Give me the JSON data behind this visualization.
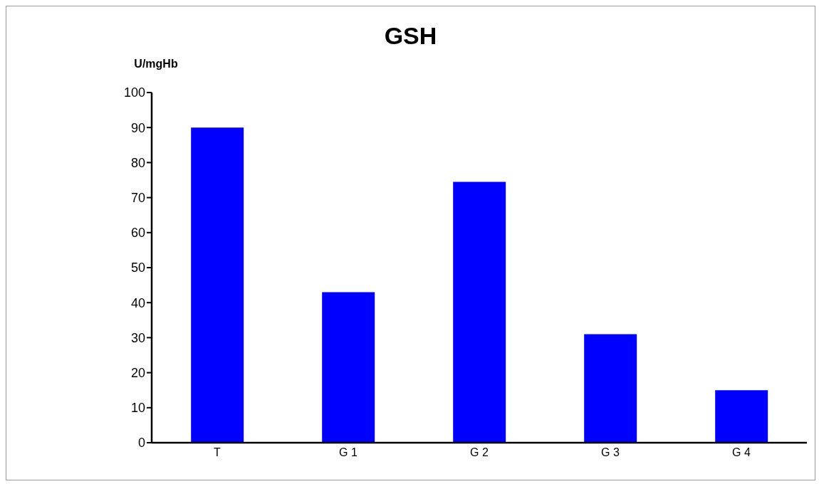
{
  "chart_data": {
    "type": "bar",
    "title": "GSH",
    "ylabel": "U/mgHb",
    "categories": [
      "T",
      "G 1",
      "G 2",
      "G 3",
      "G 4"
    ],
    "values": [
      90,
      43,
      74.5,
      31,
      15
    ],
    "color": "#0000ff",
    "ylim": [
      0,
      100
    ],
    "yticks": [
      0,
      10,
      20,
      30,
      40,
      50,
      60,
      70,
      80,
      90,
      100
    ]
  }
}
